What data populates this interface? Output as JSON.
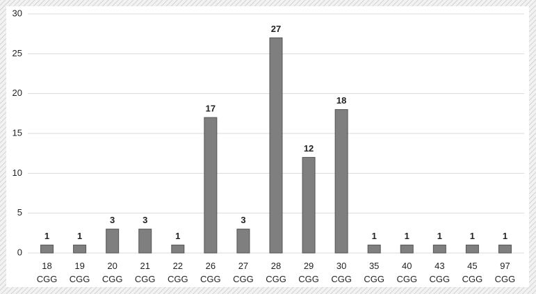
{
  "chart_data": {
    "type": "bar",
    "categories": [
      "18 CGG",
      "19 CGG",
      "20 CGG",
      "21 CGG",
      "22 CGG",
      "26 CGG",
      "27 CGG",
      "28 CGG",
      "29 CGG",
      "30 CGG",
      "35 CGG",
      "40 CGG",
      "43 CGG",
      "45 CGG",
      "97 CGG"
    ],
    "values": [
      1,
      1,
      3,
      3,
      1,
      17,
      3,
      27,
      12,
      18,
      1,
      1,
      1,
      1,
      1
    ],
    "color": "#7f7f7f",
    "ylim": [
      0,
      30
    ],
    "yticks": [
      0,
      5,
      10,
      15,
      20,
      25,
      30
    ],
    "grid": true
  }
}
